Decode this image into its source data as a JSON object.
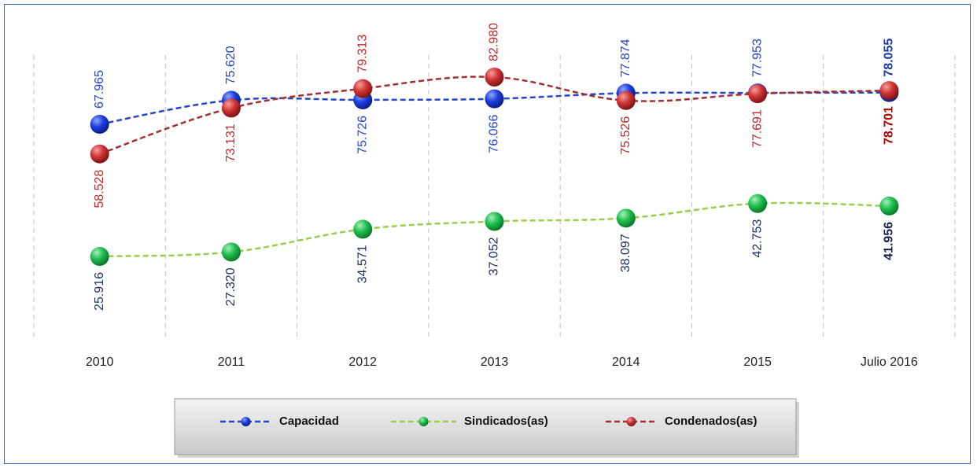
{
  "chart_data": {
    "type": "line",
    "categories": [
      "2010",
      "2011",
      "2012",
      "2013",
      "2014",
      "2015",
      "Julio 2016"
    ],
    "series": [
      {
        "name": "Capacidad",
        "color": "#2546c8",
        "values": [
          67.965,
          75.62,
          75.726,
          76.066,
          77.874,
          77.953,
          78.055
        ],
        "value_labels": [
          "67.965",
          "75.620",
          "75.726",
          "76.066",
          "77.874",
          "77.953",
          "78.055"
        ]
      },
      {
        "name": "Sindicados(as)",
        "color": "#9acd4a",
        "values": [
          25.916,
          27.32,
          34.571,
          37.052,
          38.097,
          42.753,
          41.956
        ],
        "value_labels": [
          "25.916",
          "27.320",
          "34.571",
          "37.052",
          "38.097",
          "42.753",
          "41.956"
        ]
      },
      {
        "name": "Condenados(as)",
        "color": "#a33030",
        "values": [
          58.528,
          73.131,
          79.313,
          82.98,
          75.526,
          77.691,
          78.701
        ],
        "value_labels": [
          "58.528",
          "73.131",
          "79.313",
          "82.980",
          "75.526",
          "77.691",
          "78.701"
        ]
      }
    ],
    "grid": true,
    "legend": "bottom"
  }
}
